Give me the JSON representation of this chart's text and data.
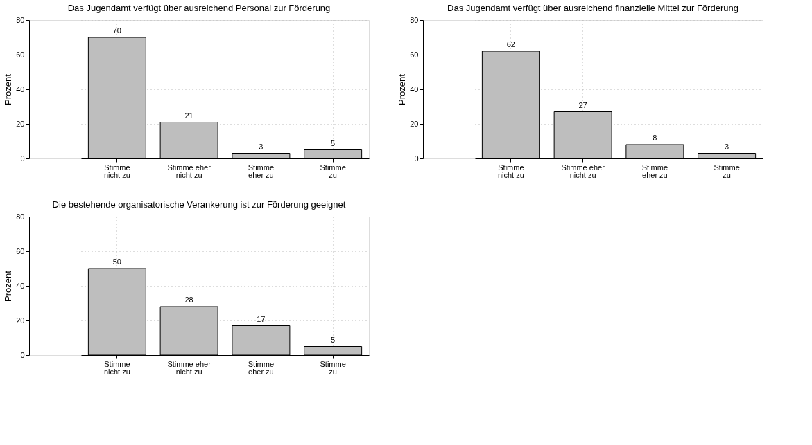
{
  "chart_data": [
    {
      "type": "bar",
      "title": "Das Jugendamt verfügt über ausreichend Personal zur Förderung",
      "ylabel": "Prozent",
      "categories": [
        "Stimme\nnicht zu",
        "Stimme eher\nnicht zu",
        "Stimme\neher zu",
        "Stimme\nzu"
      ],
      "values": [
        70,
        21,
        3,
        5
      ],
      "color": "#bebebe",
      "ylim": [
        0,
        80
      ],
      "yticks": [
        0,
        20,
        40,
        60,
        80
      ],
      "grid": true,
      "data_labels": true
    },
    {
      "type": "bar",
      "title": "Das Jugendamt verfügt über ausreichend finanzielle Mittel zur Förderung",
      "ylabel": "Prozent",
      "categories": [
        "Stimme\nnicht zu",
        "Stimme eher\nnicht zu",
        "Stimme\neher zu",
        "Stimme\nzu"
      ],
      "values": [
        62,
        27,
        8,
        3
      ],
      "color": "#bebebe",
      "ylim": [
        0,
        80
      ],
      "yticks": [
        0,
        20,
        40,
        60,
        80
      ],
      "grid": true,
      "data_labels": true
    },
    {
      "type": "bar",
      "title": "Die bestehende organisatorische Verankerung ist zur Förderung geeignet",
      "ylabel": "Prozent",
      "categories": [
        "Stimme\nnicht zu",
        "Stimme eher\nnicht zu",
        "Stimme\neher zu",
        "Stimme\nzu"
      ],
      "values": [
        50,
        28,
        17,
        5
      ],
      "color": "#bebebe",
      "ylim": [
        0,
        80
      ],
      "yticks": [
        0,
        20,
        40,
        60,
        80
      ],
      "grid": true,
      "data_labels": true
    }
  ]
}
